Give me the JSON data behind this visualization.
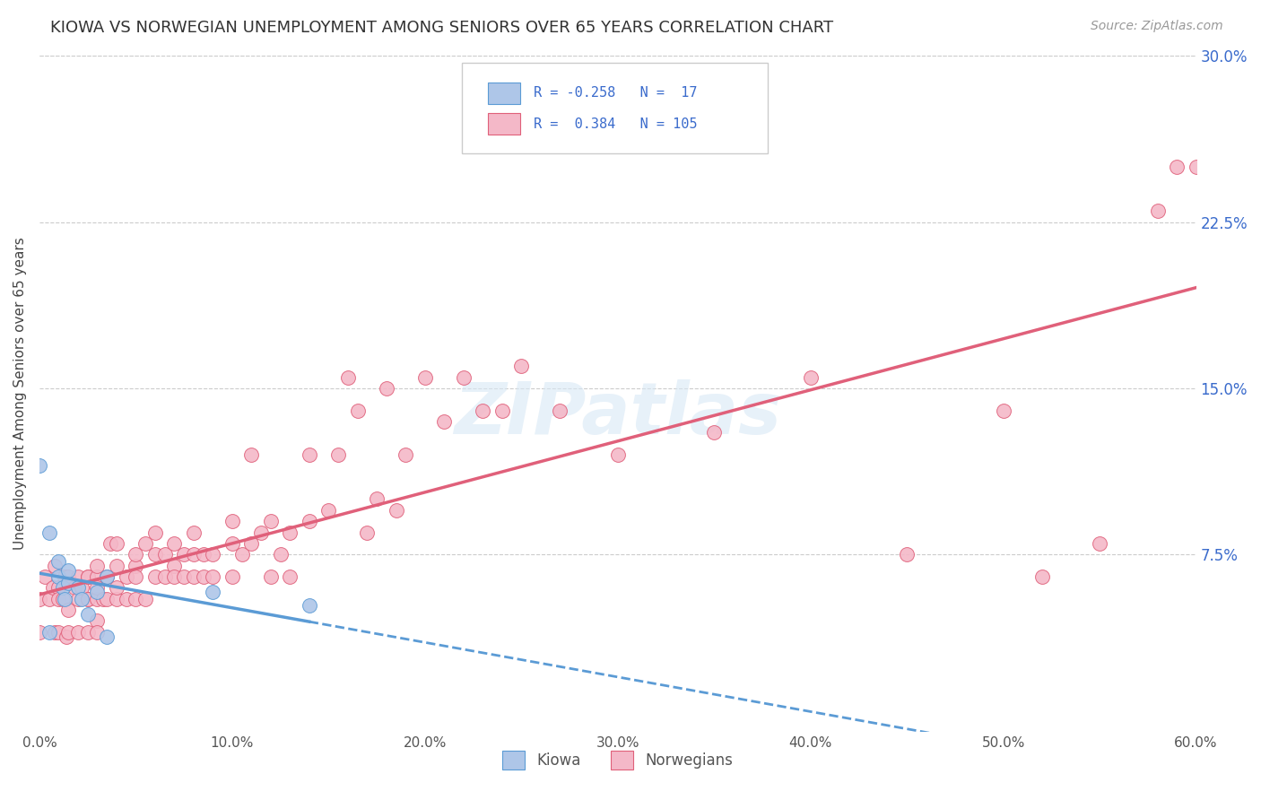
{
  "title": "KIOWA VS NORWEGIAN UNEMPLOYMENT AMONG SENIORS OVER 65 YEARS CORRELATION CHART",
  "source": "Source: ZipAtlas.com",
  "ylabel": "Unemployment Among Seniors over 65 years",
  "xlim": [
    0.0,
    0.6
  ],
  "ylim": [
    -0.005,
    0.3
  ],
  "xticks": [
    0.0,
    0.1,
    0.2,
    0.3,
    0.4,
    0.5,
    0.6
  ],
  "xticklabels": [
    "0.0%",
    "10.0%",
    "20.0%",
    "30.0%",
    "40.0%",
    "50.0%",
    "60.0%"
  ],
  "yticks": [
    0.075,
    0.15,
    0.225,
    0.3
  ],
  "yticklabels": [
    "7.5%",
    "15.0%",
    "22.5%",
    "30.0%"
  ],
  "kiowa_R": -0.258,
  "kiowa_N": 17,
  "norwegian_R": 0.384,
  "norwegian_N": 105,
  "kiowa_color": "#aec6e8",
  "norwegian_color": "#f4b8c8",
  "kiowa_line_color": "#5b9bd5",
  "norwegian_line_color": "#e0607a",
  "background_color": "#ffffff",
  "watermark": "ZIPatlas",
  "kiowa_x": [
    0.0,
    0.005,
    0.005,
    0.01,
    0.01,
    0.012,
    0.013,
    0.015,
    0.015,
    0.02,
    0.022,
    0.025,
    0.03,
    0.035,
    0.035,
    0.09,
    0.14
  ],
  "kiowa_y": [
    0.115,
    0.085,
    0.04,
    0.065,
    0.072,
    0.06,
    0.055,
    0.062,
    0.068,
    0.06,
    0.055,
    0.048,
    0.058,
    0.065,
    0.038,
    0.058,
    0.052
  ],
  "norwegian_x": [
    0.0,
    0.0,
    0.003,
    0.005,
    0.007,
    0.008,
    0.008,
    0.01,
    0.01,
    0.01,
    0.012,
    0.013,
    0.014,
    0.015,
    0.015,
    0.015,
    0.018,
    0.02,
    0.02,
    0.02,
    0.022,
    0.025,
    0.025,
    0.025,
    0.025,
    0.025,
    0.03,
    0.03,
    0.03,
    0.03,
    0.03,
    0.03,
    0.033,
    0.035,
    0.035,
    0.037,
    0.04,
    0.04,
    0.04,
    0.04,
    0.045,
    0.045,
    0.05,
    0.05,
    0.05,
    0.05,
    0.055,
    0.055,
    0.06,
    0.06,
    0.06,
    0.065,
    0.065,
    0.07,
    0.07,
    0.07,
    0.075,
    0.075,
    0.08,
    0.08,
    0.08,
    0.085,
    0.085,
    0.09,
    0.09,
    0.1,
    0.1,
    0.1,
    0.105,
    0.11,
    0.11,
    0.115,
    0.12,
    0.12,
    0.125,
    0.13,
    0.13,
    0.14,
    0.14,
    0.15,
    0.155,
    0.16,
    0.165,
    0.17,
    0.175,
    0.18,
    0.185,
    0.19,
    0.2,
    0.21,
    0.22,
    0.23,
    0.24,
    0.25,
    0.27,
    0.3,
    0.35,
    0.4,
    0.45,
    0.5,
    0.52,
    0.55,
    0.58,
    0.59,
    0.6
  ],
  "norwegian_y": [
    0.055,
    0.04,
    0.065,
    0.055,
    0.06,
    0.04,
    0.07,
    0.06,
    0.04,
    0.055,
    0.055,
    0.065,
    0.038,
    0.05,
    0.065,
    0.04,
    0.06,
    0.055,
    0.04,
    0.065,
    0.06,
    0.065,
    0.055,
    0.055,
    0.04,
    0.065,
    0.065,
    0.045,
    0.055,
    0.07,
    0.04,
    0.06,
    0.055,
    0.065,
    0.055,
    0.08,
    0.07,
    0.055,
    0.06,
    0.08,
    0.065,
    0.055,
    0.07,
    0.055,
    0.075,
    0.065,
    0.08,
    0.055,
    0.075,
    0.065,
    0.085,
    0.075,
    0.065,
    0.07,
    0.065,
    0.08,
    0.075,
    0.065,
    0.075,
    0.065,
    0.085,
    0.075,
    0.065,
    0.075,
    0.065,
    0.08,
    0.065,
    0.09,
    0.075,
    0.08,
    0.12,
    0.085,
    0.09,
    0.065,
    0.075,
    0.085,
    0.065,
    0.09,
    0.12,
    0.095,
    0.12,
    0.155,
    0.14,
    0.085,
    0.1,
    0.15,
    0.095,
    0.12,
    0.155,
    0.135,
    0.155,
    0.14,
    0.14,
    0.16,
    0.14,
    0.12,
    0.13,
    0.155,
    0.075,
    0.14,
    0.065,
    0.08,
    0.23,
    0.25,
    0.25
  ]
}
